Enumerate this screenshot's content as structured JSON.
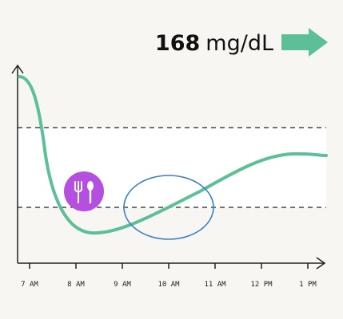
{
  "reading": {
    "value": "168",
    "unit": "mg/dL"
  },
  "time_labels": [
    "7 AM",
    "8 AM",
    "9 AM",
    "10 AM",
    "11 AM",
    "12 PM",
    "1 PM"
  ]
}
